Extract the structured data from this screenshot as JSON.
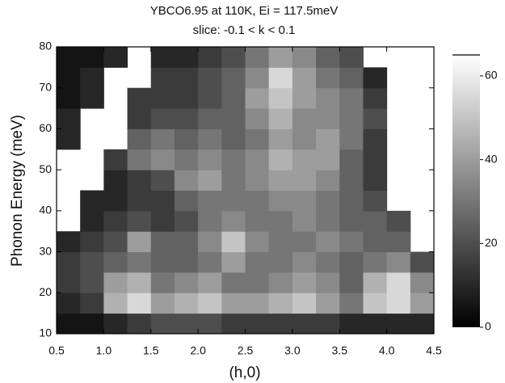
{
  "chart_data": {
    "type": "heatmap",
    "title": "YBCO6.95 at 110K, Ei = 117.5meV",
    "subtitle": "slice: -0.1 < k < 0.1",
    "xlabel": "(h,0)",
    "ylabel": "Phonon Energy (meV)",
    "xlim": [
      0.5,
      4.5
    ],
    "ylim": [
      10,
      80
    ],
    "xticks": [
      0.5,
      {
        "value": 1,
        "label": "1.0"
      },
      1.5,
      {
        "value": 2,
        "label": "2.0"
      },
      2.5,
      {
        "value": 3,
        "label": "3.0"
      },
      3.5,
      {
        "value": 4,
        "label": "4.0"
      },
      4.5
    ],
    "yticks": [
      10,
      20,
      30,
      40,
      50,
      60,
      70,
      80
    ],
    "xbins": [
      0.5,
      0.75,
      1,
      1.25,
      1.5,
      1.75,
      2,
      2.25,
      2.5,
      2.75,
      3,
      3.25,
      3.5,
      3.75,
      4,
      4.25,
      4.5
    ],
    "ybins": [
      10,
      15,
      20,
      25,
      30,
      35,
      40,
      45,
      50,
      55,
      60,
      65,
      70,
      75,
      80
    ],
    "z": [
      [
        5,
        5,
        10,
        15,
        20,
        20,
        20,
        15,
        15,
        15,
        15,
        15,
        10,
        10,
        10,
        10
      ],
      [
        10,
        15,
        45,
        55,
        40,
        45,
        50,
        40,
        40,
        45,
        50,
        40,
        30,
        50,
        55,
        40
      ],
      [
        15,
        20,
        40,
        45,
        30,
        35,
        40,
        30,
        30,
        35,
        40,
        35,
        25,
        45,
        55,
        35
      ],
      [
        15,
        20,
        25,
        30,
        25,
        25,
        30,
        40,
        30,
        30,
        35,
        30,
        25,
        30,
        35,
        20
      ],
      [
        10,
        15,
        20,
        40,
        25,
        25,
        35,
        50,
        35,
        30,
        30,
        35,
        30,
        25,
        25,
        null
      ],
      [
        null,
        10,
        15,
        20,
        15,
        20,
        30,
        35,
        30,
        30,
        35,
        30,
        25,
        25,
        20,
        null
      ],
      [
        null,
        10,
        10,
        15,
        15,
        25,
        30,
        30,
        30,
        35,
        35,
        30,
        25,
        20,
        null,
        null
      ],
      [
        null,
        null,
        10,
        15,
        20,
        35,
        40,
        30,
        35,
        40,
        40,
        35,
        25,
        15,
        null,
        null
      ],
      [
        null,
        null,
        15,
        30,
        35,
        30,
        35,
        30,
        35,
        45,
        40,
        40,
        25,
        15,
        null,
        null
      ],
      [
        10,
        null,
        null,
        25,
        30,
        25,
        30,
        25,
        30,
        40,
        35,
        40,
        30,
        15,
        null,
        null
      ],
      [
        10,
        null,
        null,
        15,
        20,
        20,
        25,
        25,
        35,
        45,
        35,
        35,
        30,
        20,
        null,
        null
      ],
      [
        5,
        10,
        null,
        15,
        15,
        15,
        20,
        25,
        40,
        50,
        40,
        35,
        30,
        15,
        null,
        null
      ],
      [
        5,
        10,
        null,
        null,
        15,
        15,
        20,
        25,
        35,
        55,
        40,
        30,
        25,
        10,
        null,
        null
      ],
      [
        5,
        5,
        10,
        null,
        10,
        10,
        15,
        20,
        30,
        40,
        35,
        25,
        20,
        null,
        null,
        null
      ]
    ],
    "colorbar": {
      "zlim": [
        0,
        65
      ],
      "ticks": [
        0,
        20,
        40,
        60
      ],
      "colormap": [
        "#000000",
        "#ffffff"
      ]
    }
  }
}
